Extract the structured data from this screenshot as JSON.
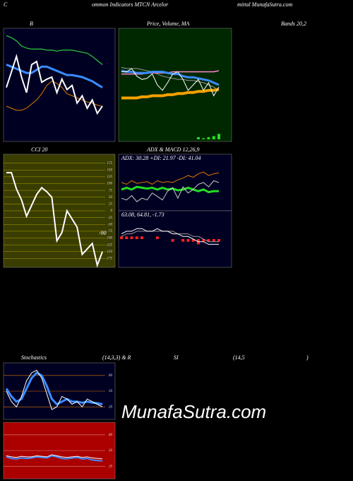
{
  "header": [
    "C",
    "ommon  Indicators MTCN  Arcelor",
    "mittal MunafaSutra.com"
  ],
  "labels": [
    "B",
    "Price, Volume, MA",
    "Bands 20,2",
    "CCI 20",
    "ADX  & MACD 12,26,9",
    "Stochastics",
    "(14,3,3) & R",
    "SI",
    "(14,5",
    ")"
  ],
  "watermark": "MunafaSutra.com",
  "chart_data": [
    {
      "type": "line",
      "background": "#000022",
      "ylim": [
        0,
        105
      ],
      "series": [
        {
          "color": "#2ecc40",
          "width": 1.2,
          "values": [
            100,
            98,
            95,
            90,
            88,
            87,
            87,
            87,
            86,
            86,
            85,
            86,
            86,
            86,
            85,
            84,
            83,
            80,
            76,
            72
          ]
        },
        {
          "color": "#e07b00",
          "width": 1,
          "values": [
            32,
            30,
            28,
            28,
            30,
            34,
            38,
            44,
            52,
            56,
            54,
            50,
            44,
            42,
            40,
            38,
            36,
            35,
            33,
            32
          ]
        },
        {
          "color": "#3a8cff",
          "width": 3,
          "values": [
            72,
            70,
            68,
            66,
            64,
            64,
            67,
            70,
            70,
            68,
            66,
            64,
            62,
            62,
            61,
            60,
            58,
            56,
            53,
            50
          ]
        },
        {
          "color": "#ffffff",
          "width": 2,
          "values": [
            50,
            65,
            80,
            60,
            45,
            72,
            75,
            55,
            58,
            60,
            45,
            58,
            48,
            52,
            35,
            42,
            30,
            38,
            25,
            32
          ]
        }
      ]
    },
    {
      "type": "line",
      "background": "#002800",
      "ylim": [
        0,
        100
      ],
      "series": [
        {
          "color": "#22dd22",
          "style": "bar",
          "values": [
            0,
            0,
            0,
            0,
            0,
            0,
            0,
            0,
            0,
            0,
            0,
            0,
            0,
            0,
            0,
            2,
            1,
            2,
            3,
            5
          ]
        },
        {
          "color": "#999999",
          "width": 1,
          "values": [
            66,
            65,
            65,
            65,
            64,
            63,
            62,
            60,
            58,
            57,
            56,
            55,
            55,
            54,
            54,
            53,
            52,
            50,
            48,
            45
          ]
        },
        {
          "color": "#ff88cc",
          "width": 1.5,
          "values": [
            60,
            60,
            60,
            60,
            60,
            61,
            61,
            61,
            61,
            61,
            62,
            62,
            62,
            62,
            62,
            62,
            62,
            62,
            62,
            63
          ]
        },
        {
          "color": "#f5a000",
          "width": 4,
          "values": [
            38,
            38,
            38,
            38,
            39,
            39,
            40,
            40,
            40,
            41,
            41,
            42,
            42,
            43,
            43,
            44,
            44,
            45,
            45,
            46
          ]
        },
        {
          "color": "#3a8cff",
          "width": 3,
          "values": [
            63,
            62,
            62,
            61,
            61,
            61,
            62,
            62,
            62,
            61,
            60,
            60,
            58,
            57,
            57,
            56,
            55,
            54,
            52,
            50
          ]
        },
        {
          "color": "#ffffff",
          "width": 1,
          "values": [
            62,
            62,
            65,
            58,
            55,
            56,
            60,
            50,
            45,
            52,
            60,
            62,
            55,
            45,
            50,
            55,
            45,
            52,
            40,
            48
          ]
        }
      ]
    },
    {
      "type": "line",
      "background": "#3a3d00",
      "grid_color": "#b0a000",
      "ylim": [
        -200,
        200
      ],
      "yticks": [
        175,
        150,
        125,
        100,
        75,
        50,
        25,
        0,
        -25,
        -50,
        -75,
        -100,
        -125,
        -150,
        -175
      ],
      "annotation": "-90",
      "series": [
        {
          "color": "#ffffff",
          "width": 2,
          "values": [
            140,
            140,
            80,
            40,
            -20,
            20,
            60,
            85,
            70,
            50,
            -110,
            -80,
            0,
            -30,
            -60,
            -160,
            -140,
            -120,
            -200,
            -150
          ]
        }
      ]
    },
    {
      "type": "line",
      "background": "#000022",
      "ylim": [
        0,
        60
      ],
      "annotation": "ADX: 30.28  +DI: 21.97  -DI: 41.04",
      "series": [
        {
          "color": "#e07b00",
          "width": 1,
          "values": [
            30,
            28,
            32,
            29,
            30,
            31,
            28,
            32,
            30,
            31,
            30,
            33,
            35,
            38,
            36,
            40,
            42,
            38,
            40,
            41
          ]
        },
        {
          "color": "#22dd22",
          "width": 3,
          "values": [
            22,
            24,
            22,
            25,
            24,
            23,
            24,
            22,
            24,
            22,
            23,
            21,
            22,
            24,
            22,
            20,
            22,
            19,
            20,
            20
          ]
        },
        {
          "color": "#cccccc",
          "width": 1,
          "values": [
            12,
            10,
            15,
            8,
            12,
            10,
            18,
            14,
            10,
            20,
            24,
            12,
            25,
            18,
            22,
            28,
            30,
            25,
            32,
            30
          ]
        }
      ]
    },
    {
      "type": "line",
      "background": "#000022",
      "ylim": [
        -10,
        10
      ],
      "annotation": "63.08,  64.81,  -1.73",
      "series": [
        {
          "color": "#ff2222",
          "style": "bar",
          "values": [
            1,
            1,
            1,
            1,
            1,
            0,
            0,
            1,
            0,
            0,
            -1,
            0,
            -1,
            -1,
            -1,
            -2,
            -1,
            -1,
            -1,
            -1
          ]
        },
        {
          "color": "#999999",
          "width": 1,
          "values": [
            1,
            2,
            2,
            3,
            3,
            3,
            3,
            3,
            3,
            3,
            3,
            2,
            2,
            2,
            1,
            1,
            0,
            -1,
            -1,
            -1
          ]
        },
        {
          "color": "#ffffff",
          "width": 1,
          "values": [
            2,
            3,
            3,
            4,
            4,
            3,
            3,
            4,
            3,
            3,
            2,
            2,
            1,
            1,
            0,
            -1,
            -1,
            -2,
            -2,
            -2
          ]
        }
      ]
    },
    {
      "type": "line",
      "background": "#000022",
      "grid_color": "#e07b00",
      "ylim": [
        0,
        100
      ],
      "yticks": [
        80,
        50,
        20
      ],
      "series": [
        {
          "color": "#3a8cff",
          "width": 3,
          "values": [
            55,
            40,
            30,
            35,
            55,
            75,
            85,
            80,
            60,
            35,
            25,
            30,
            35,
            30,
            30,
            28,
            30,
            28,
            27,
            25
          ]
        },
        {
          "color": "#ffffff",
          "width": 1,
          "values": [
            50,
            30,
            20,
            40,
            70,
            85,
            90,
            75,
            45,
            15,
            20,
            40,
            35,
            25,
            30,
            20,
            35,
            30,
            25,
            20
          ]
        }
      ]
    },
    {
      "type": "line",
      "background": "#aa0000",
      "grid_color": "#dd8888",
      "ylim": [
        0,
        100
      ],
      "yticks": [
        80,
        50,
        20
      ],
      "series": [
        {
          "color": "#3a8cff",
          "width": 2,
          "values": [
            38,
            35,
            34,
            36,
            35,
            36,
            38,
            37,
            36,
            40,
            38,
            35,
            34,
            36,
            37,
            34,
            35,
            32,
            31,
            30
          ]
        },
        {
          "color": "#ffffff",
          "width": 1,
          "values": [
            40,
            38,
            37,
            39,
            38,
            38,
            40,
            39,
            38,
            42,
            40,
            38,
            37,
            38,
            39,
            37,
            38,
            36,
            35,
            34
          ]
        }
      ]
    }
  ]
}
